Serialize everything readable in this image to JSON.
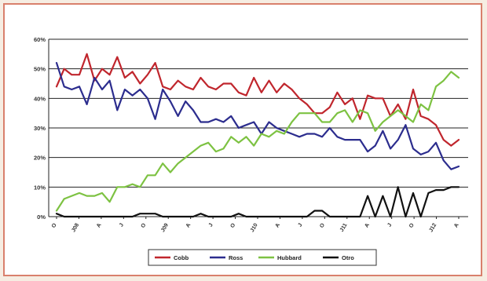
{
  "chart_data": {
    "type": "line",
    "title": "",
    "xlabel": "",
    "ylabel": "",
    "ylim": [
      0,
      60
    ],
    "y_ticks": [
      "0%",
      "10%",
      "20%",
      "30%",
      "40%",
      "50%",
      "60%"
    ],
    "x_tick_labels": [
      "O",
      "J08",
      "A",
      "J",
      "O",
      "J09",
      "A",
      "J",
      "O",
      "J10",
      "A",
      "J",
      "O",
      "J11",
      "A",
      "J",
      "O",
      "J12",
      "A"
    ],
    "grid": "horizontal",
    "legend_position": "bottom",
    "series": [
      {
        "name": "Cobb",
        "color": "#c0262d",
        "values": [
          44,
          50,
          48,
          48,
          55,
          46,
          50,
          48,
          54,
          47,
          49,
          45,
          48,
          52,
          44,
          43,
          46,
          44,
          43,
          47,
          44,
          43,
          45,
          45,
          42,
          41,
          47,
          42,
          46,
          42,
          45,
          43,
          40,
          38,
          35,
          35,
          37,
          42,
          38,
          40,
          33,
          41,
          40,
          40,
          34,
          38,
          33,
          43,
          34,
          33,
          31,
          26,
          24,
          26
        ]
      },
      {
        "name": "Ross",
        "color": "#2c2d8e",
        "values": [
          52,
          44,
          43,
          44,
          38,
          47,
          43,
          46,
          36,
          43,
          41,
          43,
          40,
          33,
          43,
          39,
          34,
          39,
          36,
          32,
          32,
          33,
          32,
          34,
          30,
          31,
          32,
          28,
          32,
          30,
          29,
          28,
          27,
          28,
          28,
          27,
          30,
          27,
          26,
          26,
          26,
          22,
          24,
          29,
          23,
          26,
          31,
          23,
          21,
          22,
          25,
          19,
          16,
          17
        ]
      },
      {
        "name": "Hubbard",
        "color": "#7dc242",
        "values": [
          2,
          6,
          7,
          8,
          7,
          7,
          8,
          5,
          10,
          10,
          11,
          10,
          14,
          14,
          18,
          15,
          18,
          20,
          22,
          24,
          25,
          22,
          23,
          27,
          25,
          27,
          24,
          28,
          27,
          29,
          28,
          32,
          35,
          35,
          35,
          32,
          32,
          35,
          36,
          32,
          36,
          35,
          29,
          32,
          34,
          36,
          34,
          32,
          38,
          36,
          44,
          46,
          49,
          47
        ]
      },
      {
        "name": "Otro",
        "color": "#111111",
        "values": [
          1,
          0,
          0,
          0,
          0,
          0,
          0,
          0,
          0,
          0,
          0,
          1,
          1,
          1,
          0,
          0,
          0,
          0,
          0,
          1,
          0,
          0,
          0,
          0,
          1,
          0,
          0,
          0,
          0,
          0,
          0,
          0,
          0,
          0,
          2,
          2,
          0,
          0,
          0,
          0,
          0,
          7,
          0,
          7,
          0,
          10,
          0,
          8,
          0,
          8,
          9,
          9,
          10,
          10
        ]
      }
    ]
  }
}
